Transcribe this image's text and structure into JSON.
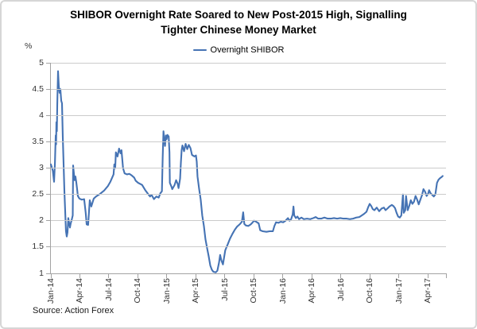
{
  "title": {
    "line1": "SHIBOR Overnight Rate Soared to New Post-2015 High, Signalling",
    "line2": "Tighter Chinese Money Market"
  },
  "legend": {
    "label": "Overnight SHIBOR"
  },
  "source": "Source: Action Forex",
  "colors": {
    "line": "#4573b4",
    "grid": "#cbcbcb",
    "axis": "#a3a3a3",
    "border": "#d6d6d6",
    "title_text": "#000000",
    "axis_text": "#333333"
  },
  "chart_data": {
    "type": "line",
    "title": "SHIBOR Overnight Rate Soared to New Post-2015 High, Signalling Tighter Chinese Money Market",
    "xlabel": "",
    "ylabel": "%",
    "ylim": [
      1,
      5
    ],
    "ytick_step": 0.5,
    "y_ticks": [
      1,
      1.5,
      2,
      2.5,
      3,
      3.5,
      4,
      4.5,
      5
    ],
    "xlim": [
      0,
      40.85
    ],
    "grid": true,
    "legend_position": "top",
    "x_unit": "months since Jan-2014",
    "x_ticks": [
      {
        "t": 0,
        "label": "Jan-14"
      },
      {
        "t": 3,
        "label": "Apr-14"
      },
      {
        "t": 6,
        "label": "Jul-14"
      },
      {
        "t": 9,
        "label": "Oct-14"
      },
      {
        "t": 12,
        "label": "Jan-15"
      },
      {
        "t": 15,
        "label": "Apr-15"
      },
      {
        "t": 18,
        "label": "Jul-15"
      },
      {
        "t": 21,
        "label": "Oct-15"
      },
      {
        "t": 24,
        "label": "Jan-16"
      },
      {
        "t": 27,
        "label": "Apr-16"
      },
      {
        "t": 30,
        "label": "Jul-16"
      },
      {
        "t": 33,
        "label": "Oct-16"
      },
      {
        "t": 36,
        "label": "Jan-17"
      },
      {
        "t": 39,
        "label": "Apr-17"
      },
      {
        "t": 40.85,
        "label": ""
      }
    ],
    "series": [
      {
        "name": "Overnight SHIBOR",
        "color": "#4573b4",
        "points": [
          [
            0,
            3.07
          ],
          [
            0.2,
            2.95
          ],
          [
            0.33,
            2.74
          ],
          [
            0.42,
            3.1
          ],
          [
            0.5,
            3.62
          ],
          [
            0.54,
            3.45
          ],
          [
            0.57,
            3.87
          ],
          [
            0.62,
            3.7
          ],
          [
            0.66,
            4.2
          ],
          [
            0.74,
            4.84
          ],
          [
            0.82,
            4.56
          ],
          [
            0.9,
            4.43
          ],
          [
            0.98,
            4.5
          ],
          [
            1.07,
            4.28
          ],
          [
            1.15,
            4.23
          ],
          [
            1.23,
            3.6
          ],
          [
            1.4,
            2.55
          ],
          [
            1.56,
            1.8
          ],
          [
            1.64,
            1.7
          ],
          [
            1.72,
            1.78
          ],
          [
            1.8,
            2.05
          ],
          [
            1.89,
            1.95
          ],
          [
            1.97,
            1.87
          ],
          [
            2.05,
            1.95
          ],
          [
            2.13,
            2
          ],
          [
            2.26,
            2.1
          ],
          [
            2.3,
            3.05
          ],
          [
            2.38,
            2.9
          ],
          [
            2.46,
            2.77
          ],
          [
            2.54,
            2.84
          ],
          [
            2.62,
            2.74
          ],
          [
            2.7,
            2.62
          ],
          [
            2.79,
            2.47
          ],
          [
            2.95,
            2.42
          ],
          [
            3.2,
            2.4
          ],
          [
            3.44,
            2.41
          ],
          [
            3.6,
            2.15
          ],
          [
            3.7,
            1.93
          ],
          [
            3.85,
            1.92
          ],
          [
            4.02,
            2.39
          ],
          [
            4.18,
            2.27
          ],
          [
            4.43,
            2.42
          ],
          [
            4.67,
            2.46
          ],
          [
            5.08,
            2.51
          ],
          [
            5.49,
            2.57
          ],
          [
            5.9,
            2.66
          ],
          [
            6.15,
            2.74
          ],
          [
            6.48,
            2.88
          ],
          [
            6.56,
            3.07
          ],
          [
            6.65,
            3
          ],
          [
            6.72,
            3.3
          ],
          [
            6.89,
            3.22
          ],
          [
            7.05,
            3.37
          ],
          [
            7.21,
            3.28
          ],
          [
            7.3,
            3.34
          ],
          [
            7.46,
            3
          ],
          [
            7.62,
            2.9
          ],
          [
            7.87,
            2.88
          ],
          [
            8.11,
            2.89
          ],
          [
            8.36,
            2.86
          ],
          [
            8.61,
            2.82
          ],
          [
            8.77,
            2.76
          ],
          [
            9.02,
            2.72
          ],
          [
            9.43,
            2.68
          ],
          [
            9.76,
            2.58
          ],
          [
            10,
            2.52
          ],
          [
            10.25,
            2.46
          ],
          [
            10.41,
            2.49
          ],
          [
            10.66,
            2.41
          ],
          [
            10.9,
            2.46
          ],
          [
            11.15,
            2.44
          ],
          [
            11.31,
            2.52
          ],
          [
            11.48,
            2.56
          ],
          [
            11.56,
            3.2
          ],
          [
            11.64,
            3.7
          ],
          [
            11.72,
            3.55
          ],
          [
            11.8,
            3.42
          ],
          [
            11.89,
            3.62
          ],
          [
            11.97,
            3.55
          ],
          [
            12.05,
            3.63
          ],
          [
            12.18,
            3.6
          ],
          [
            12.26,
            3.3
          ],
          [
            12.3,
            2.72
          ],
          [
            12.46,
            2.65
          ],
          [
            12.55,
            2.6
          ],
          [
            12.79,
            2.68
          ],
          [
            12.95,
            2.77
          ],
          [
            13.11,
            2.7
          ],
          [
            13.2,
            2.62
          ],
          [
            13.36,
            2.8
          ],
          [
            13.44,
            3.1
          ],
          [
            13.52,
            3.34
          ],
          [
            13.6,
            3.43
          ],
          [
            13.77,
            3.32
          ],
          [
            13.93,
            3.46
          ],
          [
            14.1,
            3.36
          ],
          [
            14.26,
            3.44
          ],
          [
            14.43,
            3.38
          ],
          [
            14.59,
            3.25
          ],
          [
            14.84,
            3.22
          ],
          [
            15,
            3.24
          ],
          [
            15.08,
            3.12
          ],
          [
            15.16,
            2.84
          ],
          [
            15.33,
            2.6
          ],
          [
            15.49,
            2.4
          ],
          [
            15.65,
            2.1
          ],
          [
            15.82,
            1.9
          ],
          [
            15.98,
            1.65
          ],
          [
            16.15,
            1.48
          ],
          [
            16.31,
            1.33
          ],
          [
            16.48,
            1.15
          ],
          [
            16.64,
            1.07
          ],
          [
            16.8,
            1.03
          ],
          [
            17.05,
            1.02
          ],
          [
            17.21,
            1.05
          ],
          [
            17.38,
            1.2
          ],
          [
            17.5,
            1.35
          ],
          [
            17.62,
            1.25
          ],
          [
            17.79,
            1.17
          ],
          [
            18.03,
            1.44
          ],
          [
            18.28,
            1.55
          ],
          [
            18.52,
            1.66
          ],
          [
            18.77,
            1.75
          ],
          [
            19.02,
            1.83
          ],
          [
            19.26,
            1.89
          ],
          [
            19.51,
            1.93
          ],
          [
            19.75,
            1.98
          ],
          [
            19.88,
            2.16
          ],
          [
            20,
            1.94
          ],
          [
            20.16,
            1.91
          ],
          [
            20.41,
            1.9
          ],
          [
            20.66,
            1.93
          ],
          [
            20.82,
            1.96
          ],
          [
            21,
            2
          ],
          [
            21.23,
            1.98
          ],
          [
            21.48,
            1.95
          ],
          [
            21.64,
            1.82
          ],
          [
            21.9,
            1.8
          ],
          [
            22.29,
            1.79
          ],
          [
            22.62,
            1.8
          ],
          [
            22.95,
            1.8
          ],
          [
            23.11,
            1.9
          ],
          [
            23.28,
            1.97
          ],
          [
            23.52,
            1.96
          ],
          [
            23.77,
            1.98
          ],
          [
            24.02,
            1.97
          ],
          [
            24.26,
            2
          ],
          [
            24.51,
            2.05
          ],
          [
            24.67,
            2
          ],
          [
            24.84,
            2.03
          ],
          [
            25,
            2.12
          ],
          [
            25.08,
            2.27
          ],
          [
            25.16,
            2.1
          ],
          [
            25.33,
            2.05
          ],
          [
            25.49,
            2.08
          ],
          [
            25.66,
            2.03
          ],
          [
            25.9,
            2.06
          ],
          [
            26.15,
            2.03
          ],
          [
            26.48,
            2.04
          ],
          [
            26.81,
            2.03
          ],
          [
            27.13,
            2.05
          ],
          [
            27.38,
            2.07
          ],
          [
            27.63,
            2.04
          ],
          [
            27.95,
            2.04
          ],
          [
            28.28,
            2.06
          ],
          [
            28.61,
            2.04
          ],
          [
            28.94,
            2.04
          ],
          [
            29.27,
            2.05
          ],
          [
            29.6,
            2.04
          ],
          [
            29.92,
            2.05
          ],
          [
            30.25,
            2.04
          ],
          [
            30.58,
            2.04
          ],
          [
            30.91,
            2.03
          ],
          [
            31.24,
            2.04
          ],
          [
            31.57,
            2.06
          ],
          [
            31.89,
            2.07
          ],
          [
            32.14,
            2.1
          ],
          [
            32.38,
            2.13
          ],
          [
            32.63,
            2.17
          ],
          [
            32.79,
            2.25
          ],
          [
            32.96,
            2.32
          ],
          [
            33.12,
            2.28
          ],
          [
            33.28,
            2.22
          ],
          [
            33.45,
            2.2
          ],
          [
            33.69,
            2.25
          ],
          [
            33.94,
            2.18
          ],
          [
            34.18,
            2.23
          ],
          [
            34.43,
            2.25
          ],
          [
            34.6,
            2.2
          ],
          [
            34.84,
            2.24
          ],
          [
            35,
            2.27
          ],
          [
            35.25,
            2.3
          ],
          [
            35.41,
            2.28
          ],
          [
            35.58,
            2.24
          ],
          [
            35.74,
            2.15
          ],
          [
            35.9,
            2.08
          ],
          [
            36.07,
            2.06
          ],
          [
            36.23,
            2.1
          ],
          [
            36.4,
            2.5
          ],
          [
            36.48,
            2.15
          ],
          [
            36.64,
            2.2
          ],
          [
            36.72,
            2.47
          ],
          [
            36.89,
            2.2
          ],
          [
            37.05,
            2.28
          ],
          [
            37.21,
            2.39
          ],
          [
            37.38,
            2.32
          ],
          [
            37.54,
            2.36
          ],
          [
            37.7,
            2.47
          ],
          [
            37.87,
            2.4
          ],
          [
            38.03,
            2.31
          ],
          [
            38.2,
            2.4
          ],
          [
            38.36,
            2.48
          ],
          [
            38.52,
            2.6
          ],
          [
            38.69,
            2.55
          ],
          [
            38.85,
            2.47
          ],
          [
            39.02,
            2.52
          ],
          [
            39.1,
            2.58
          ],
          [
            39.26,
            2.52
          ],
          [
            39.43,
            2.49
          ],
          [
            39.59,
            2.46
          ],
          [
            39.75,
            2.5
          ],
          [
            39.92,
            2.72
          ],
          [
            40.08,
            2.78
          ],
          [
            40.24,
            2.81
          ],
          [
            40.4,
            2.83
          ],
          [
            40.51,
            2.85
          ]
        ]
      }
    ]
  }
}
